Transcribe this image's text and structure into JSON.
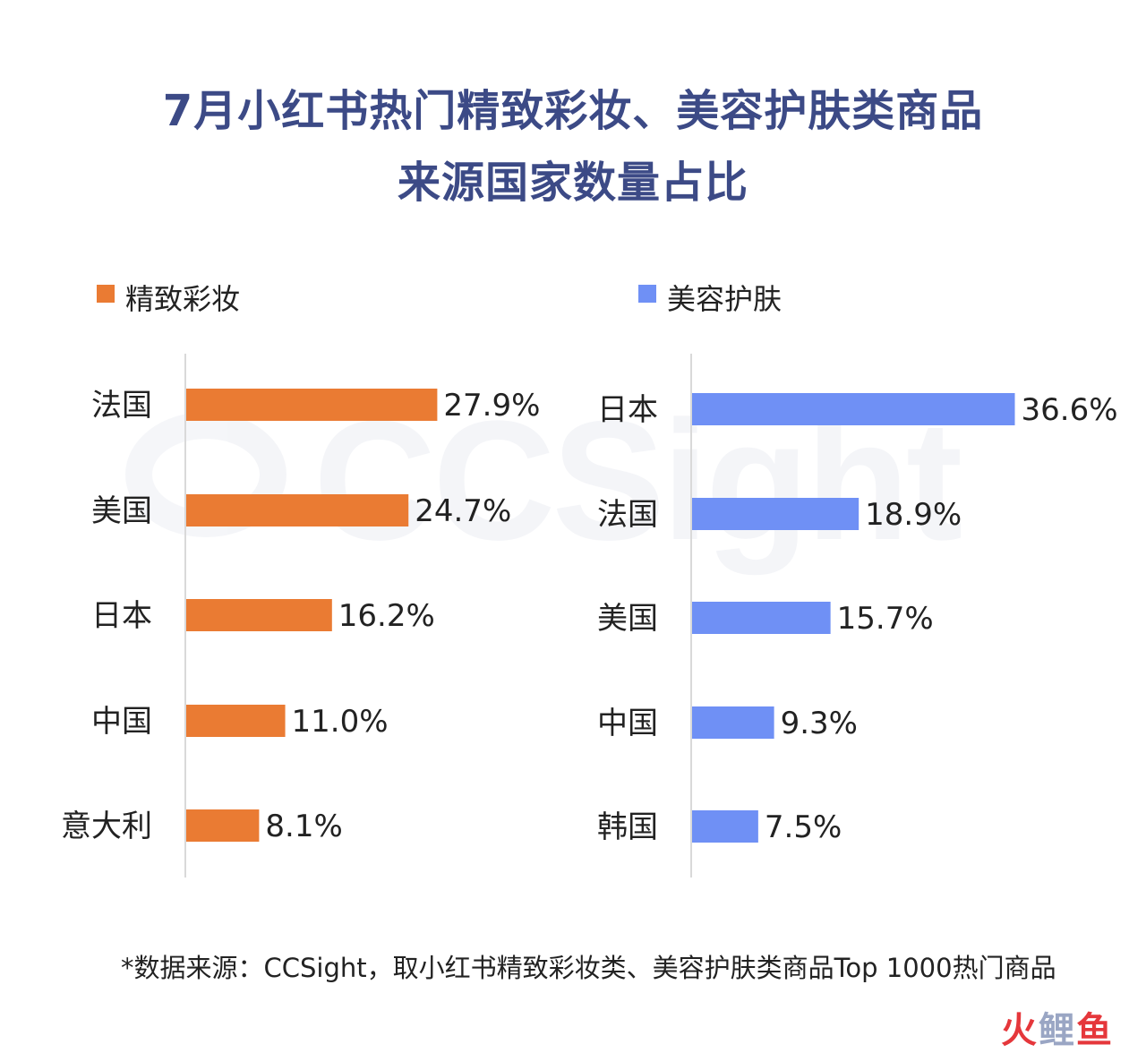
{
  "title": {
    "line1": "7月小红书热门精致彩妆、美容护肤类商品",
    "line2": "来源国家数量占比"
  },
  "watermark": "CCSight",
  "chart_data": [
    {
      "type": "bar",
      "orientation": "horizontal",
      "legend_label": "精致彩妆",
      "color": "#ea7b33",
      "categories": [
        "法国",
        "美国",
        "日本",
        "中国",
        "意大利"
      ],
      "values": [
        27.9,
        24.7,
        16.2,
        11.0,
        8.1
      ],
      "value_labels": [
        "27.9%",
        "24.7%",
        "16.2%",
        "11.0%",
        "8.1%"
      ],
      "unit": "%",
      "grid": false
    },
    {
      "type": "bar",
      "orientation": "horizontal",
      "legend_label": "美容护肤",
      "color": "#6f90f5",
      "categories": [
        "日本",
        "法国",
        "美国",
        "中国",
        "韩国"
      ],
      "values": [
        36.6,
        18.9,
        15.7,
        9.3,
        7.5
      ],
      "value_labels": [
        "36.6%",
        "18.9%",
        "15.7%",
        "9.3%",
        "7.5%"
      ],
      "unit": "%",
      "grid": false
    }
  ],
  "footnote": "*数据来源：CCSight，取小红书精致彩妆类、美容护肤类商品Top 1000热门商品",
  "brand": {
    "part1": "火",
    "part2": "鲤",
    "part3": "鱼"
  }
}
